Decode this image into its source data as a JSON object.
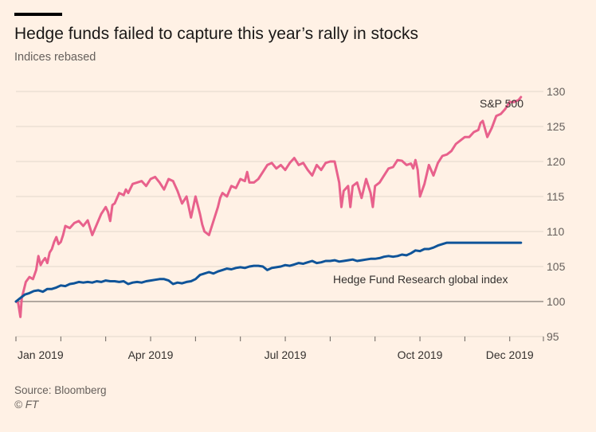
{
  "title": "Hedge funds failed to capture this year’s rally in stocks",
  "subtitle": "Indices rebased",
  "source": "Source: Bloomberg",
  "credit": "© FT",
  "colors": {
    "background": "#fff1e5",
    "sp500": "#e8618c",
    "hfr": "#0f5499",
    "grid": "#e1d6cc",
    "baseline": "#66605c"
  },
  "chart_data": {
    "type": "line",
    "title": "Hedge funds failed to capture this year’s rally in stocks",
    "ylabel": "Indices rebased",
    "xlabel": "",
    "ylim": [
      95,
      130
    ],
    "yticks": [
      95,
      100,
      105,
      110,
      115,
      120,
      125,
      130
    ],
    "xlim": [
      0,
      11.75
    ],
    "xticks": [
      {
        "x": 0,
        "label": "Jan 2019"
      },
      {
        "x": 1,
        "label": ""
      },
      {
        "x": 2,
        "label": ""
      },
      {
        "x": 3,
        "label": "Apr 2019"
      },
      {
        "x": 4,
        "label": ""
      },
      {
        "x": 5,
        "label": ""
      },
      {
        "x": 6,
        "label": "Jul 2019"
      },
      {
        "x": 7,
        "label": ""
      },
      {
        "x": 8,
        "label": ""
      },
      {
        "x": 9,
        "label": "Oct 2019"
      },
      {
        "x": 10,
        "label": ""
      },
      {
        "x": 11,
        "label": "Dec 2019"
      }
    ],
    "baseline": 100,
    "series": [
      {
        "name": "S&P 500",
        "x": [
          0,
          0.05,
          0.1,
          0.13,
          0.17,
          0.22,
          0.3,
          0.38,
          0.45,
          0.5,
          0.55,
          0.6,
          0.65,
          0.7,
          0.75,
          0.8,
          0.85,
          0.9,
          0.95,
          1.0,
          1.05,
          1.1,
          1.2,
          1.3,
          1.4,
          1.5,
          1.6,
          1.7,
          1.8,
          1.9,
          2.0,
          2.05,
          2.1,
          2.15,
          2.2,
          2.3,
          2.4,
          2.45,
          2.5,
          2.6,
          2.7,
          2.8,
          2.9,
          3.0,
          3.1,
          3.2,
          3.3,
          3.4,
          3.5,
          3.6,
          3.7,
          3.8,
          3.9,
          4.0,
          4.1,
          4.15,
          4.2,
          4.3,
          4.4,
          4.5,
          4.55,
          4.6,
          4.7,
          4.8,
          4.9,
          5.0,
          5.1,
          5.15,
          5.2,
          5.3,
          5.4,
          5.5,
          5.6,
          5.7,
          5.8,
          5.9,
          6.0,
          6.1,
          6.2,
          6.3,
          6.4,
          6.5,
          6.6,
          6.7,
          6.8,
          6.9,
          7.0,
          7.1,
          7.2,
          7.25,
          7.3,
          7.4,
          7.45,
          7.5,
          7.6,
          7.7,
          7.8,
          7.9,
          7.95,
          8.0,
          8.1,
          8.2,
          8.3,
          8.4,
          8.5,
          8.6,
          8.7,
          8.8,
          8.85,
          8.9,
          8.95,
          9.0,
          9.1,
          9.2,
          9.3,
          9.4,
          9.5,
          9.6,
          9.7,
          9.8,
          9.9,
          10.0,
          10.1,
          10.2,
          10.3,
          10.35,
          10.4,
          10.5,
          10.6,
          10.7,
          10.8,
          10.9,
          11.0,
          11.1,
          11.2,
          11.25
        ],
        "values": [
          100,
          99.8,
          97.8,
          100.5,
          101.5,
          102.8,
          103.5,
          103.2,
          104.5,
          106.5,
          105.2,
          105.8,
          106.2,
          105.5,
          107,
          107.5,
          108.5,
          109.2,
          108.2,
          108.5,
          109.5,
          110.8,
          110.5,
          111.2,
          111.5,
          110.8,
          111.6,
          109.5,
          111,
          112.5,
          113.5,
          112.8,
          111.5,
          113.8,
          114,
          115.5,
          115.2,
          116,
          115.5,
          116.8,
          117,
          117.2,
          116.5,
          117.5,
          117.8,
          117,
          116,
          117.5,
          117.2,
          115.8,
          114,
          115,
          112,
          115,
          112.5,
          111,
          110,
          109.5,
          111.5,
          113.5,
          114.8,
          115.5,
          115,
          116.5,
          116.2,
          117.5,
          117.2,
          118.5,
          117,
          117,
          117.5,
          118.5,
          119.5,
          119.8,
          119,
          119.5,
          118.8,
          119.8,
          120.5,
          119.5,
          119.8,
          118.8,
          118,
          119.5,
          118.8,
          119.8,
          120,
          120,
          117,
          113.5,
          115.8,
          116.5,
          113.5,
          116.5,
          117,
          114.8,
          117.5,
          115.5,
          113.5,
          116.5,
          117,
          118,
          119,
          119.2,
          120.2,
          120.1,
          119.5,
          119.7,
          119,
          120.2,
          118.8,
          115,
          116.8,
          119.5,
          118,
          119.8,
          120.8,
          121,
          121.5,
          122.5,
          123,
          123.5,
          123.5,
          124.2,
          124.5,
          125.5,
          125.8,
          123.5,
          124.8,
          126.5,
          126.8,
          127.5,
          128.5,
          128.5,
          128.8,
          129.2
        ]
      },
      {
        "name": "Hedge Fund Research global index",
        "x": [
          0,
          0.1,
          0.2,
          0.3,
          0.4,
          0.5,
          0.6,
          0.7,
          0.8,
          0.9,
          1.0,
          1.1,
          1.2,
          1.3,
          1.4,
          1.5,
          1.6,
          1.7,
          1.8,
          1.9,
          2.0,
          2.1,
          2.2,
          2.3,
          2.4,
          2.5,
          2.6,
          2.7,
          2.8,
          2.9,
          3.0,
          3.1,
          3.2,
          3.3,
          3.4,
          3.5,
          3.6,
          3.7,
          3.8,
          3.9,
          4.0,
          4.1,
          4.2,
          4.3,
          4.4,
          4.5,
          4.6,
          4.7,
          4.8,
          4.9,
          5.0,
          5.1,
          5.2,
          5.3,
          5.4,
          5.5,
          5.6,
          5.7,
          5.8,
          5.9,
          6.0,
          6.1,
          6.2,
          6.3,
          6.4,
          6.5,
          6.6,
          6.7,
          6.8,
          6.9,
          7.0,
          7.1,
          7.2,
          7.3,
          7.4,
          7.5,
          7.6,
          7.7,
          7.8,
          7.9,
          8.0,
          8.1,
          8.2,
          8.3,
          8.4,
          8.5,
          8.6,
          8.7,
          8.8,
          8.9,
          9.0,
          9.1,
          9.2,
          9.3,
          9.4,
          9.5,
          9.6,
          9.7,
          9.8,
          9.9,
          10.0,
          10.1,
          10.2,
          10.3,
          10.4,
          10.5,
          10.6,
          10.7,
          10.8,
          10.9,
          11.0,
          11.1,
          11.2,
          11.25
        ],
        "values": [
          100,
          100.5,
          101,
          101.2,
          101.5,
          101.6,
          101.4,
          101.8,
          101.8,
          102,
          102.3,
          102.2,
          102.5,
          102.6,
          102.8,
          102.7,
          102.8,
          102.7,
          102.9,
          102.8,
          103,
          102.9,
          102.9,
          102.8,
          102.9,
          102.5,
          102.7,
          102.8,
          102.7,
          102.9,
          103,
          103.1,
          103.2,
          103.2,
          103,
          102.5,
          102.7,
          102.6,
          102.8,
          102.9,
          103.2,
          103.8,
          104,
          104.2,
          104,
          104.3,
          104.5,
          104.7,
          104.6,
          104.8,
          104.9,
          104.8,
          105,
          105.1,
          105.1,
          105,
          104.5,
          104.8,
          104.9,
          105,
          105.2,
          105.1,
          105.3,
          105.5,
          105.4,
          105.6,
          105.8,
          105.5,
          105.6,
          105.8,
          105.8,
          105.9,
          105.7,
          105.8,
          105.9,
          106,
          105.8,
          105.9,
          106,
          106.1,
          106.1,
          106.2,
          106.4,
          106.5,
          106.4,
          106.5,
          106.7,
          106.6,
          106.9,
          107.3,
          107.2,
          107.5,
          107.5,
          107.7,
          108,
          108.2,
          108.4,
          108.4,
          108.4,
          108.4,
          108.4,
          108.4,
          108.4,
          108.4,
          108.4,
          108.4,
          108.4,
          108.4,
          108.4,
          108.4,
          108.4,
          108.4,
          108.4,
          108.4
        ],
        "label": "Hedge Fund Research global index"
      }
    ],
    "annotations": [
      "S&P 500",
      "Hedge Fund Research global index"
    ],
    "grid": true,
    "legend": "none"
  }
}
